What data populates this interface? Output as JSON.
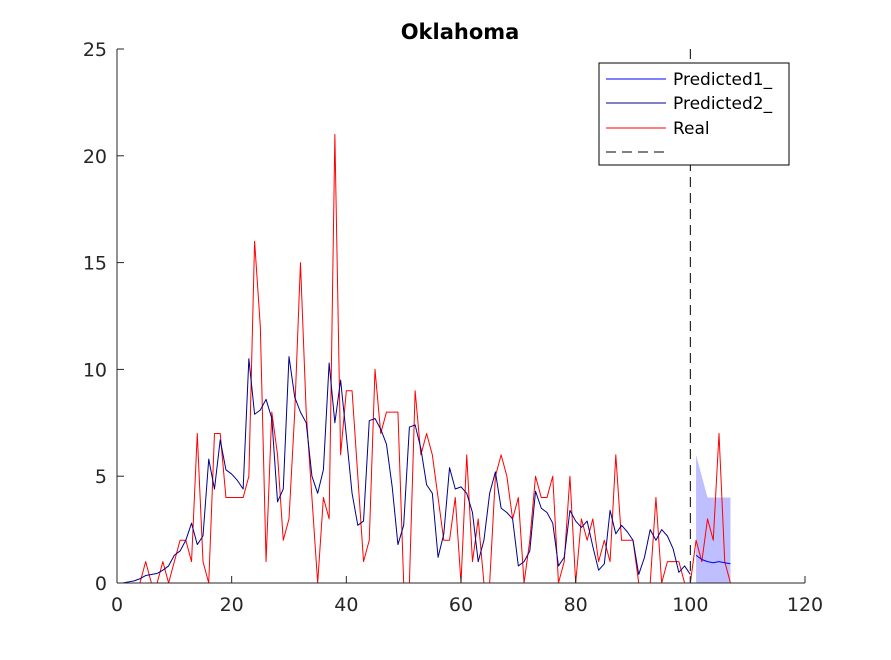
{
  "chart_data": {
    "type": "line",
    "title": "Oklahoma",
    "xlabel": "",
    "ylabel": "",
    "xlim": [
      0,
      120
    ],
    "ylim": [
      0,
      25
    ],
    "xticks": [
      0,
      20,
      40,
      60,
      80,
      100,
      120
    ],
    "yticks": [
      0,
      5,
      10,
      15,
      20,
      25
    ],
    "grid": false,
    "legend_position": "top-right",
    "legend": [
      "Predicted1_",
      "Predicted2_",
      "Real",
      ""
    ],
    "vline": {
      "x": 100,
      "style": "dashed",
      "color": "#000000"
    },
    "series": [
      {
        "name": "Predicted1_",
        "color": "#0000ff",
        "x": [
          101,
          102,
          103,
          104,
          105,
          106,
          107
        ],
        "y": [
          1.3,
          1.1,
          1.0,
          0.95,
          1.0,
          0.95,
          0.9
        ]
      },
      {
        "name": "Predicted2_",
        "color": "#00008b",
        "x": [
          1,
          2,
          3,
          4,
          5,
          6,
          7,
          8,
          9,
          10,
          11,
          12,
          13,
          14,
          15,
          16,
          17,
          18,
          19,
          20,
          21,
          22,
          23,
          24,
          25,
          26,
          27,
          28,
          29,
          30,
          31,
          32,
          33,
          34,
          35,
          36,
          37,
          38,
          39,
          40,
          41,
          42,
          43,
          44,
          45,
          46,
          47,
          48,
          49,
          50,
          51,
          52,
          53,
          54,
          55,
          56,
          57,
          58,
          59,
          60,
          61,
          62,
          63,
          64,
          65,
          66,
          67,
          68,
          69,
          70,
          71,
          72,
          73,
          74,
          75,
          76,
          77,
          78,
          79,
          80,
          81,
          82,
          83,
          84,
          85,
          86,
          87,
          88,
          89,
          90,
          91,
          92,
          93,
          94,
          95,
          96,
          97,
          98,
          99,
          100
        ],
        "y": [
          0.0,
          0.05,
          0.1,
          0.2,
          0.35,
          0.4,
          0.45,
          0.6,
          0.8,
          1.3,
          1.5,
          2.0,
          2.8,
          1.8,
          2.2,
          5.8,
          4.4,
          6.7,
          5.3,
          5.1,
          4.8,
          4.4,
          10.5,
          7.9,
          8.1,
          8.6,
          7.7,
          3.8,
          4.4,
          10.6,
          8.7,
          8.0,
          7.5,
          5.0,
          4.2,
          5.3,
          10.3,
          7.5,
          9.5,
          6.9,
          4.2,
          2.7,
          2.9,
          7.6,
          7.7,
          7.2,
          6.5,
          4.5,
          1.8,
          2.7,
          7.3,
          7.4,
          6.3,
          4.6,
          4.2,
          1.2,
          2.3,
          5.4,
          4.4,
          4.5,
          4.2,
          3.3,
          1.0,
          2.0,
          4.2,
          5.2,
          3.5,
          3.3,
          3.0,
          0.8,
          1.0,
          1.5,
          4.3,
          3.5,
          3.3,
          2.8,
          0.8,
          1.2,
          3.4,
          2.9,
          2.6,
          2.9,
          1.7,
          0.6,
          0.9,
          3.4,
          2.3,
          2.7,
          2.4,
          2.0,
          0.4,
          1.2,
          2.5,
          2.0,
          2.5,
          2.2,
          1.6,
          0.5,
          0.8,
          0.4
        ]
      },
      {
        "name": "Real",
        "color": "#ff0000",
        "x": [
          1,
          2,
          3,
          4,
          5,
          6,
          7,
          8,
          9,
          10,
          11,
          12,
          13,
          14,
          15,
          16,
          17,
          18,
          19,
          20,
          21,
          22,
          23,
          24,
          25,
          26,
          27,
          28,
          29,
          30,
          31,
          32,
          33,
          34,
          35,
          36,
          37,
          38,
          39,
          40,
          41,
          42,
          43,
          44,
          45,
          46,
          47,
          48,
          49,
          50,
          51,
          52,
          53,
          54,
          55,
          56,
          57,
          58,
          59,
          60,
          61,
          62,
          63,
          64,
          65,
          66,
          67,
          68,
          69,
          70,
          71,
          72,
          73,
          74,
          75,
          76,
          77,
          78,
          79,
          80,
          81,
          82,
          83,
          84,
          85,
          86,
          87,
          88,
          89,
          90,
          91,
          92,
          93,
          94,
          95,
          96,
          97,
          98,
          99,
          100,
          101,
          102,
          103,
          104,
          105,
          106,
          107
        ],
        "y": [
          0,
          0,
          0,
          0,
          1,
          0,
          0,
          1,
          0,
          1,
          2,
          2,
          1,
          7,
          1,
          0,
          7,
          7,
          4,
          4,
          4,
          4,
          5,
          16,
          12,
          1,
          8,
          6,
          2,
          3,
          8,
          15,
          8,
          4,
          0,
          4,
          3,
          21,
          6,
          9,
          9,
          5,
          1,
          2,
          10,
          7,
          8,
          8,
          8,
          0,
          0,
          9,
          6,
          7,
          6,
          4,
          2,
          2,
          4,
          0,
          6,
          1,
          3,
          0,
          0,
          5,
          6,
          5,
          3,
          4,
          0,
          2,
          5,
          4,
          4,
          5,
          0,
          1,
          5,
          0,
          3,
          2,
          3,
          1,
          2,
          1,
          6,
          2,
          2,
          2,
          0,
          0,
          0,
          4,
          0,
          1,
          1,
          1,
          0,
          0,
          2,
          1,
          3,
          2,
          7,
          1,
          0
        ]
      }
    ],
    "band": {
      "color": "#8080ff",
      "x": [
        101,
        102,
        103,
        104,
        105,
        106,
        107
      ],
      "upper": [
        6,
        5,
        4,
        4,
        4,
        4,
        4
      ],
      "lower": [
        0,
        0,
        0,
        0,
        0,
        0,
        0
      ]
    }
  }
}
